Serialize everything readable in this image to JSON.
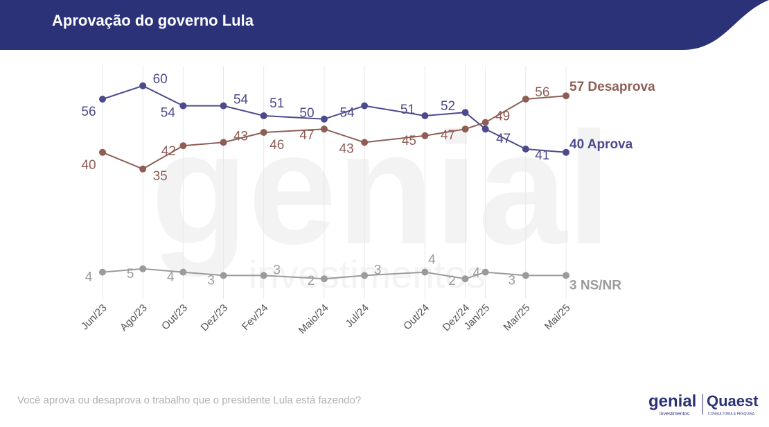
{
  "header": {
    "title": "Aprovação do governo Lula"
  },
  "chart_data": {
    "type": "line",
    "x": [
      "Jun/23",
      "Ago/23",
      "Out/23",
      "Dez/23",
      "Fev/24",
      "Maio/24",
      "Jul/24",
      "Out/24",
      "Dez/24",
      "Jan/25",
      "Mar/25",
      "Mai/25"
    ],
    "series": [
      {
        "name": "Aprova",
        "color": "#4b4a8e",
        "values": [
          56,
          60,
          54,
          54,
          51,
          50,
          54,
          51,
          52,
          47,
          41,
          40
        ]
      },
      {
        "name": "Desaprova",
        "color": "#8e5e55",
        "values": [
          40,
          35,
          42,
          43,
          46,
          47,
          43,
          45,
          47,
          49,
          56,
          57
        ]
      },
      {
        "name": "NS/NR",
        "color": "#9b9b9b",
        "values": [
          4,
          5,
          4,
          3,
          3,
          2,
          3,
          4,
          2,
          4,
          3,
          3
        ]
      }
    ],
    "ylim": [
      -4,
      66
    ],
    "grid": true
  },
  "footer": {
    "question": "Você aprova ou desaprova o trabalho que o presidente Lula está fazendo?",
    "logos": [
      "genial",
      "investimentos",
      "Quaest",
      "CONSULTORIA & PESQUISA"
    ]
  },
  "watermark": [
    "genial",
    "investimentos"
  ]
}
